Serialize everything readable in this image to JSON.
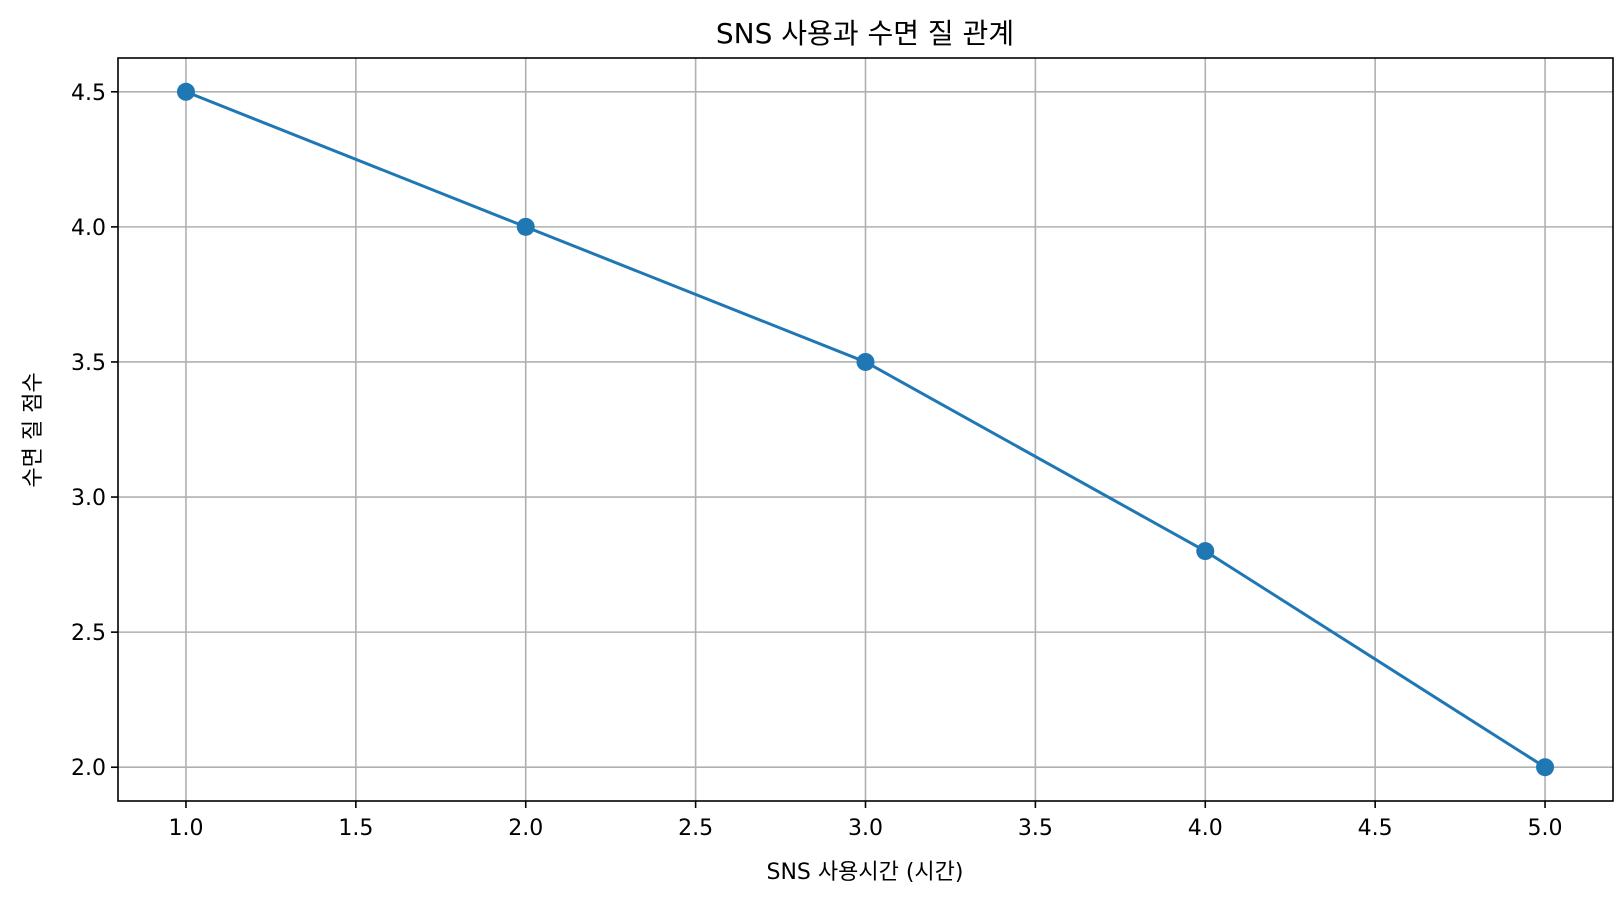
{
  "chart_data": {
    "type": "line",
    "title": "SNS 사용과 수면 질 관계",
    "xlabel": "SNS 사용시간 (시간)",
    "ylabel": "수면 질 점수",
    "x": [
      1.0,
      2.0,
      3.0,
      4.0,
      5.0
    ],
    "series": [
      {
        "values": [
          4.5,
          4.0,
          3.5,
          2.8,
          2.0
        ],
        "color": "#1f77b4",
        "marker": "circle"
      }
    ],
    "xlim": [
      0.8,
      5.2
    ],
    "ylim": [
      1.875,
      4.625
    ],
    "xticks": [
      "1.0",
      "1.5",
      "2.0",
      "2.5",
      "3.0",
      "3.5",
      "4.0",
      "4.5",
      "5.0"
    ],
    "yticks": [
      "2.0",
      "2.5",
      "3.0",
      "3.5",
      "4.0",
      "4.5"
    ],
    "grid": true,
    "legend": "none"
  }
}
